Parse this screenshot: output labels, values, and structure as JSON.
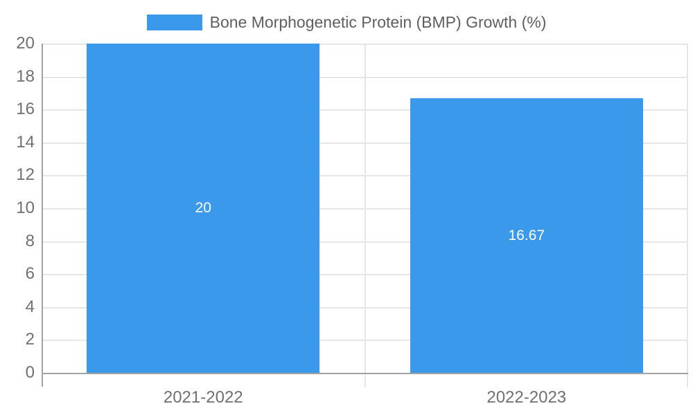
{
  "chart_data": {
    "type": "bar",
    "title": "",
    "xlabel": "",
    "ylabel": "",
    "categories": [
      "2021-2022",
      "2022-2023"
    ],
    "series": [
      {
        "name": "Bone Morphogenetic Protein (BMP) Growth (%)",
        "values": [
          20,
          16.67
        ]
      }
    ],
    "value_labels": [
      "20",
      "16.67"
    ],
    "yticks": [
      "0",
      "2",
      "4",
      "6",
      "8",
      "10",
      "12",
      "14",
      "16",
      "18",
      "20"
    ],
    "ylim": [
      0,
      20
    ],
    "grid": true,
    "legend_position": "top"
  },
  "legend": {
    "label": "Bone Morphogenetic Protein (BMP) Growth (%)"
  },
  "colors": {
    "bar": "#3b99ec",
    "gridline": "#e6e6e6",
    "axis_line": "#a2a2a2",
    "tick_label": "#707070",
    "category_label": "#707070",
    "legend_label": "#5f5f5f",
    "value_label": "#ffffff",
    "background": "#ffffff"
  }
}
